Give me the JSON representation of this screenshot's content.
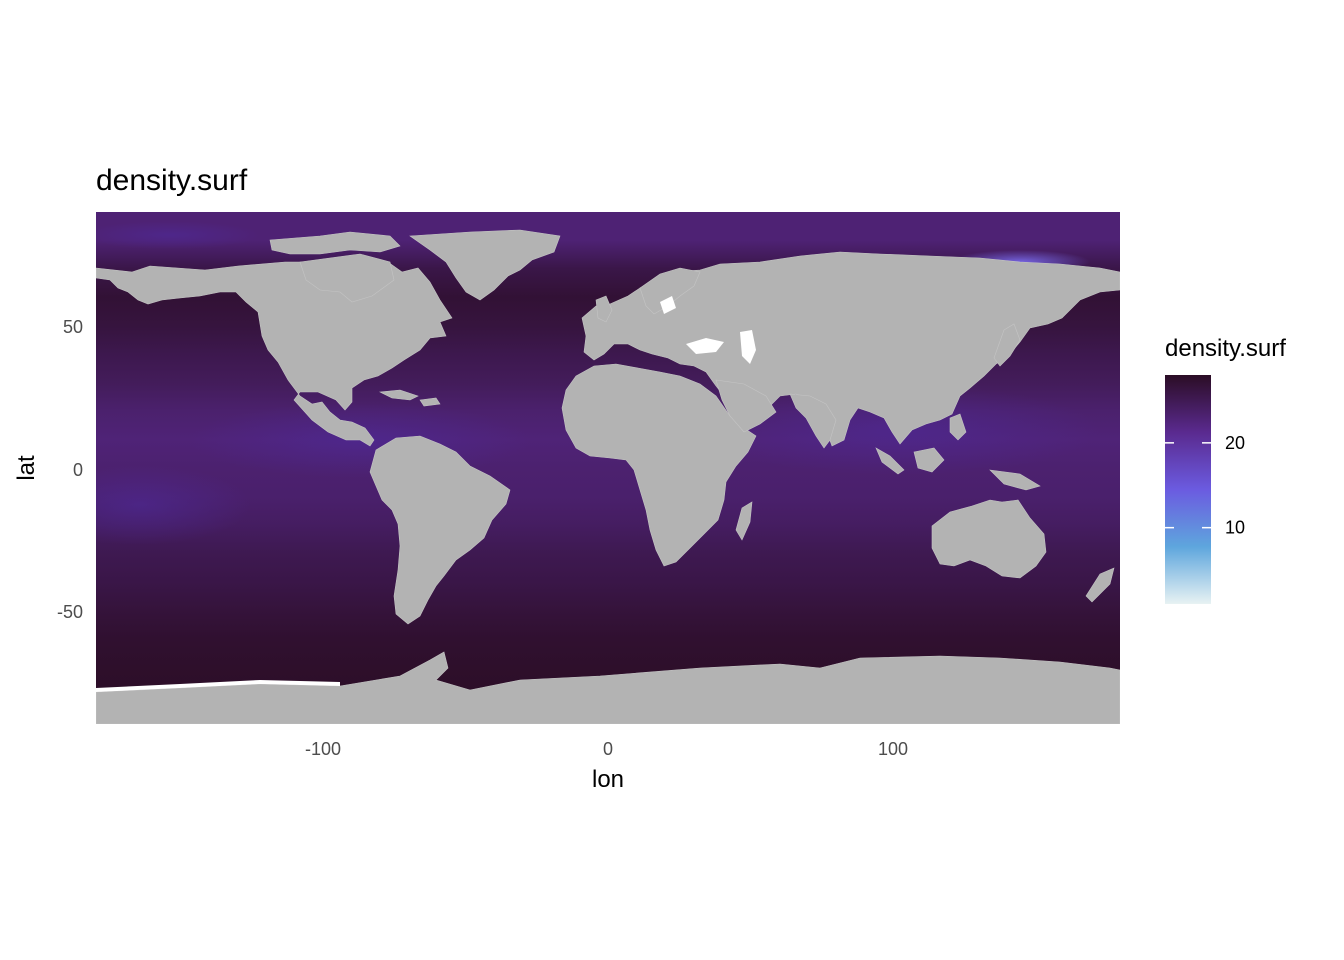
{
  "chart_data": {
    "type": "heatmap",
    "title": "density.surf",
    "xlabel": "lon",
    "ylabel": "lat",
    "xlim": [
      -180,
      180
    ],
    "ylim": [
      -90,
      90
    ],
    "x_ticks": [
      -100,
      0,
      100
    ],
    "y_ticks": [
      50,
      0,
      -50
    ],
    "x_tick_labels": [
      "-100",
      "0",
      "100"
    ],
    "y_tick_labels": [
      "50",
      "0",
      "-50"
    ],
    "grid": false,
    "background": "gray land mask over ocean raster",
    "land_color": "#b3b3b3",
    "legend": {
      "title": "density.surf",
      "position": "right",
      "range": [
        1,
        28
      ],
      "breaks": [
        10,
        20
      ],
      "break_labels": [
        "10",
        "20"
      ],
      "colors": [
        "#e8f2f3",
        "#5ea6dd",
        "#6b5be0",
        "#5a2a8f",
        "#2b0d25"
      ]
    },
    "latitude_profile": {
      "lat": [
        -80,
        -70,
        -60,
        -50,
        -40,
        -30,
        -20,
        -10,
        0,
        10,
        20,
        30,
        40,
        50,
        60,
        70,
        80
      ],
      "value": [
        27.8,
        27.6,
        27.3,
        26.6,
        25.8,
        25.2,
        24.2,
        23.5,
        23.3,
        22.8,
        23.4,
        24.6,
        25.4,
        26.4,
        27.0,
        25.8,
        23.0
      ]
    }
  }
}
